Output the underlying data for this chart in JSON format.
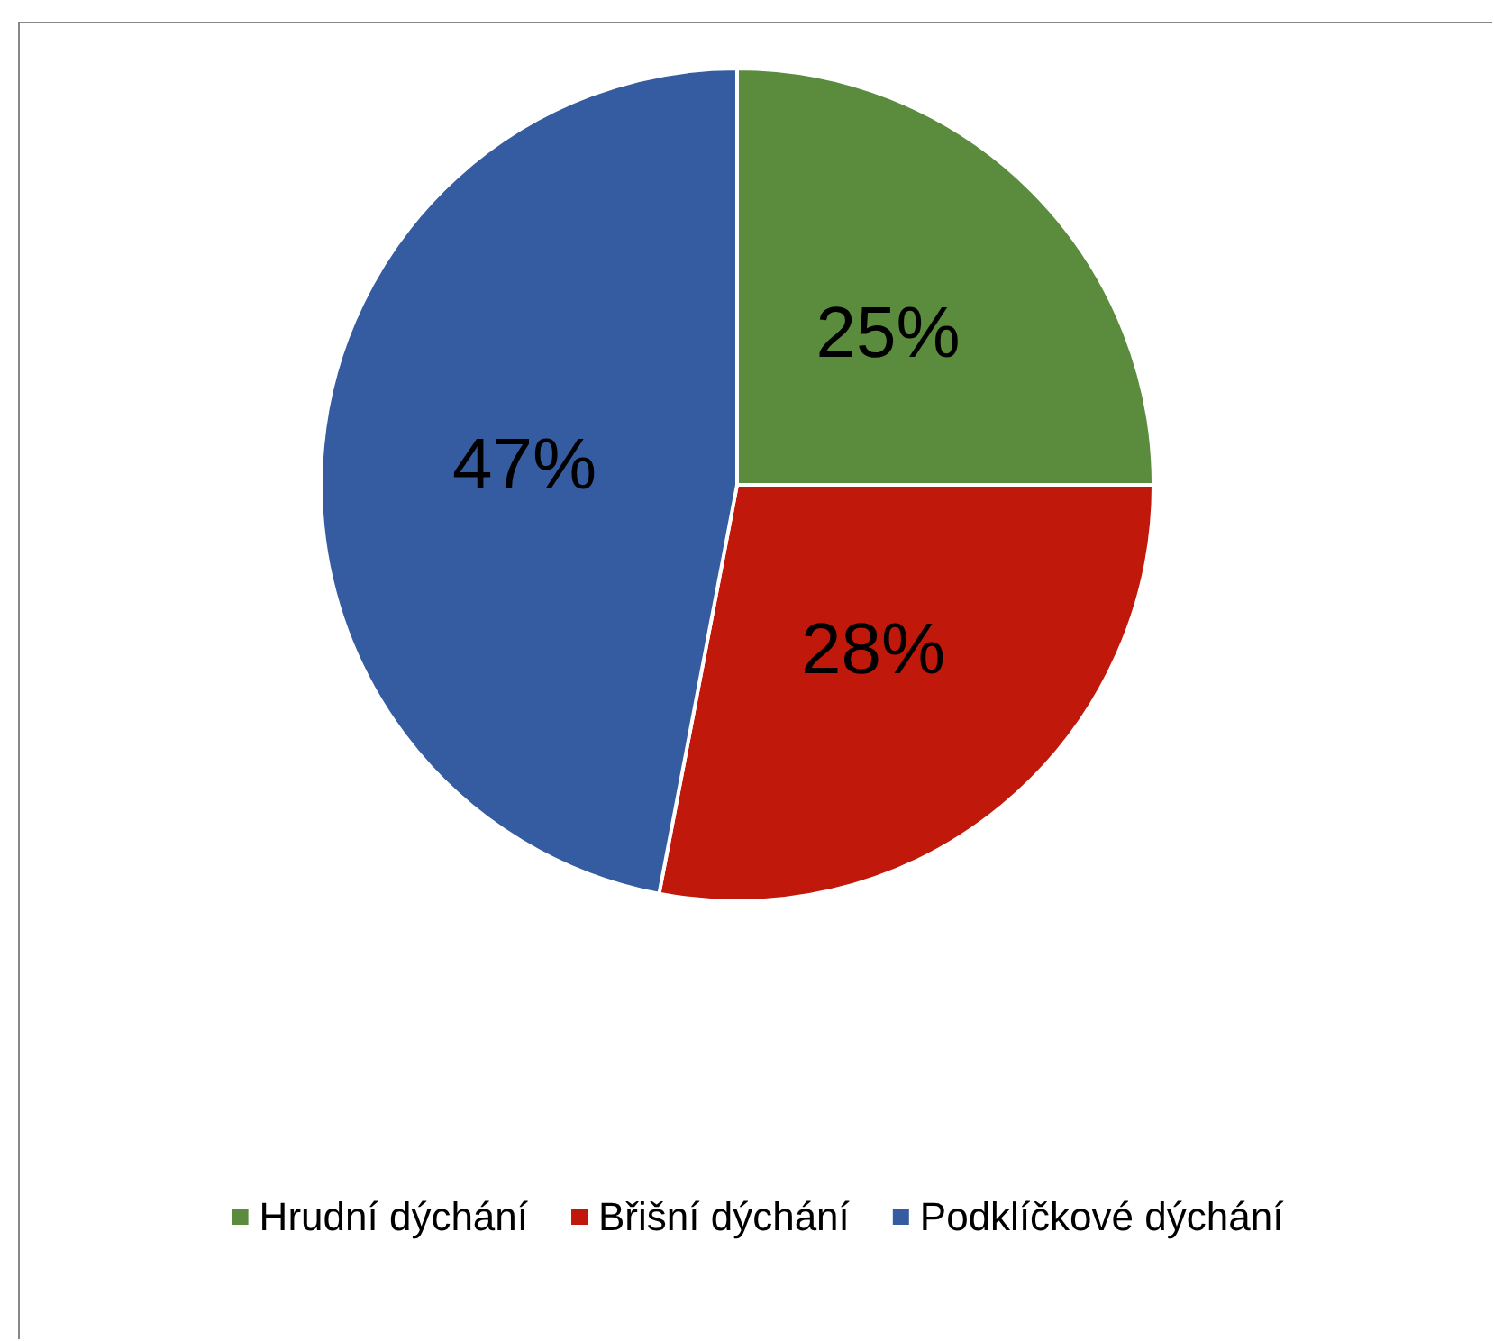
{
  "chart_data": {
    "type": "pie",
    "categories": [
      "Hrudní dýchání",
      "Břišní dýchání",
      "Podklíčkové dýchání"
    ],
    "values": [
      25,
      28,
      47
    ],
    "colors": [
      "#5b8b3c",
      "#c0190b",
      "#355ca0"
    ],
    "value_labels": [
      "25%",
      "28%",
      "47%"
    ],
    "legend": "bottom"
  }
}
